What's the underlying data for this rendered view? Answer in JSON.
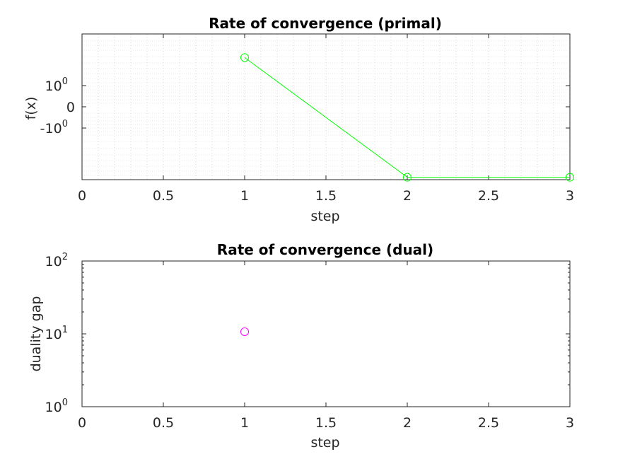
{
  "chart_data": [
    {
      "type": "line",
      "title": "Rate of convergence (primal)",
      "xlabel": "step",
      "ylabel": "f(x)",
      "xlim": [
        0,
        3
      ],
      "x_ticks": [
        "0",
        "0.5",
        "1",
        "1.5",
        "2",
        "2.5",
        "3"
      ],
      "y_scale": "symlog",
      "y_ticks": [
        {
          "value": 1,
          "base": "10",
          "exp": "0"
        },
        {
          "value": 0,
          "base": "0",
          "exp": ""
        },
        {
          "value": -1,
          "base": "-10",
          "exp": "0"
        }
      ],
      "ylim": [
        -10,
        10
      ],
      "grid": "minor-dotted",
      "series": [
        {
          "color": "#00ff00",
          "marker": "circle",
          "x": [
            1,
            2,
            3
          ],
          "y": [
            4,
            -9,
            -9
          ]
        }
      ]
    },
    {
      "type": "scatter",
      "title": "Rate of convergence (dual)",
      "xlabel": "step",
      "ylabel": "duality gap",
      "xlim": [
        0,
        3
      ],
      "x_ticks": [
        "0",
        "0.5",
        "1",
        "1.5",
        "2",
        "2.5",
        "3"
      ],
      "y_scale": "log",
      "ylim": [
        1,
        100
      ],
      "y_ticks": [
        {
          "value": 1,
          "base": "10",
          "exp": "0"
        },
        {
          "value": 10,
          "base": "10",
          "exp": "1"
        },
        {
          "value": 100,
          "base": "10",
          "exp": "2"
        }
      ],
      "grid": "off",
      "series": [
        {
          "color": "#ff00ff",
          "marker": "circle",
          "x": [
            1
          ],
          "y": [
            10.7
          ]
        }
      ]
    }
  ]
}
